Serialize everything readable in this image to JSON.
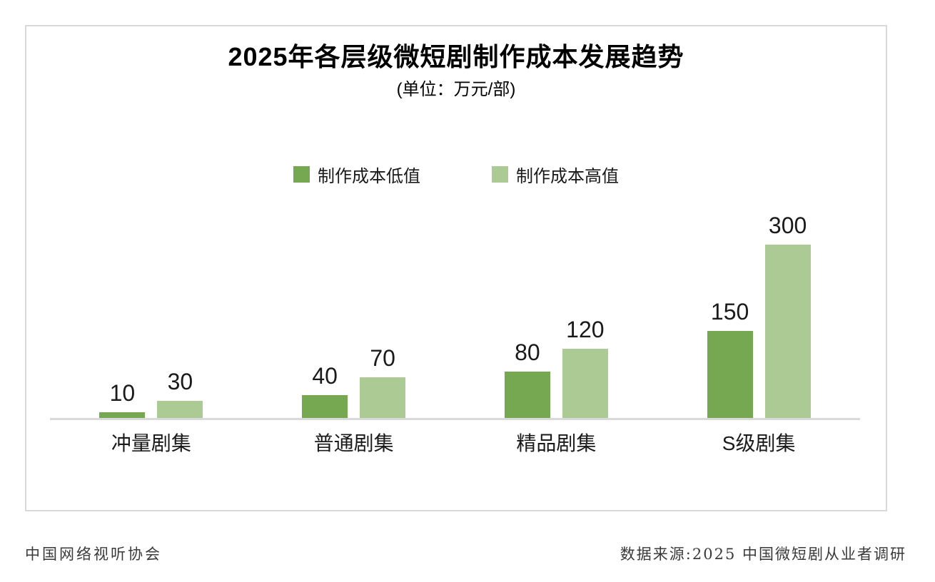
{
  "chart_data": {
    "type": "bar",
    "title": "2025年各层级微短剧制作成本发展趋势",
    "subtitle": "(单位：万元/部)",
    "unit": "万元/部",
    "categories": [
      "冲量剧集",
      "普通剧集",
      "精品剧集",
      "S级剧集"
    ],
    "series": [
      {
        "name": "制作成本低值",
        "color": "#76A852",
        "values": [
          10,
          40,
          80,
          150
        ]
      },
      {
        "name": "制作成本高值",
        "color": "#ACCB94",
        "values": [
          30,
          70,
          120,
          300
        ]
      }
    ],
    "ylim": [
      0,
      300
    ],
    "grid": false,
    "legend_position": "top-center",
    "value_labels": "above-bars"
  },
  "footer": {
    "left": "中国网络视听协会",
    "right": "数据来源:2025 中国微短剧从业者调研"
  },
  "colors": {
    "series_low": "#76A852",
    "series_high": "#ACCB94",
    "axis_line": "#D9D9D9",
    "box_border": "#D9D9D9",
    "text": "#1A1A1A"
  }
}
